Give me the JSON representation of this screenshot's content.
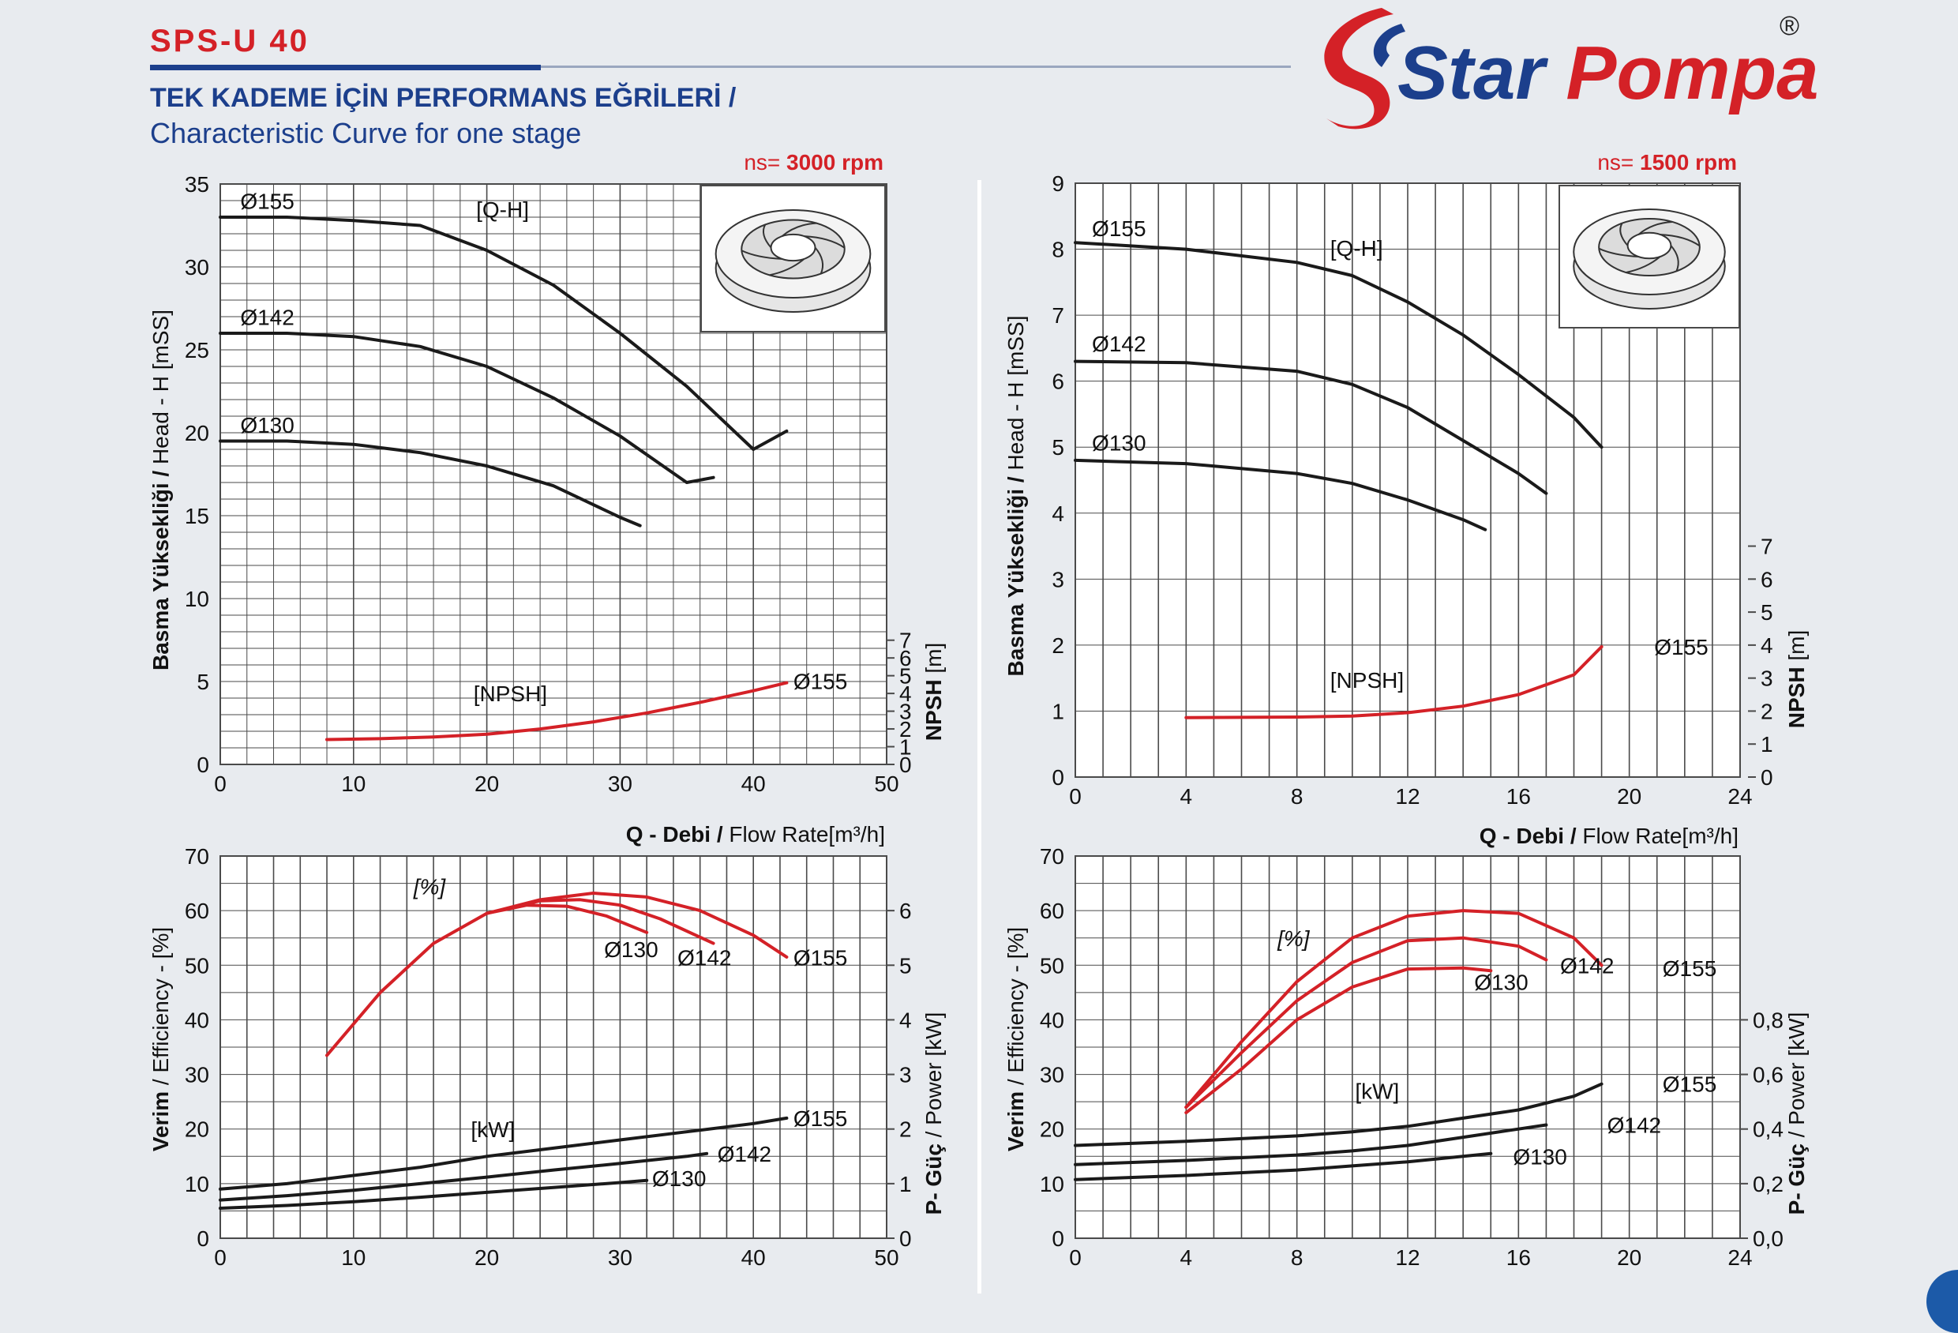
{
  "header": {
    "model": "SPS-U 40",
    "title_tr": "TEK KADEME İÇİN PERFORMANS EĞRİLERİ  /",
    "title_en": "Characteristic Curve for one stage",
    "brand_star": "Star",
    "brand_pompa": "Pompa",
    "brand_reg": "®"
  },
  "colors": {
    "primary": "#1c3f8c",
    "accent": "#d42127",
    "curve": "#1a1a1a",
    "grid": "#4a4a4a"
  },
  "chart_data": [
    {
      "type": "line",
      "speed_prefix": "ns=",
      "speed": "3000 rpm",
      "xlabel_bold": "Q - Debi /",
      "xlabel_normal": " Flow Rate[m³/h]",
      "ylabel_bold": "Basma Yüksekliği /",
      "ylabel_normal": " Head - H [mSS]",
      "y2label_bold": "NPSH",
      "y2label_normal": " [m]",
      "xlim": [
        0,
        50
      ],
      "x_ticks": [
        "0",
        "10",
        "20",
        "30",
        "40",
        "50"
      ],
      "ylim": [
        0,
        35
      ],
      "y_ticks": [
        "0",
        "5",
        "10",
        "15",
        "20",
        "25",
        "30",
        "35"
      ],
      "y2lim": [
        0,
        7
      ],
      "y2_ticks": [
        "0",
        "1",
        "2",
        "3",
        "4",
        "5",
        "6",
        "7"
      ],
      "qh_label": "[Q-H]",
      "npsh_label": "[NPSH]",
      "series": [
        {
          "name": "Ø155",
          "x": [
            0,
            5,
            10,
            15,
            20,
            25,
            30,
            35,
            40,
            42.5
          ],
          "y": [
            33.0,
            33.0,
            32.8,
            32.5,
            31.0,
            28.9,
            26.0,
            22.8,
            19.0,
            17.5
          ],
          "end": [
            42.5,
            20.1
          ]
        },
        {
          "name": "Ø142",
          "x": [
            0,
            5,
            10,
            15,
            20,
            25,
            30,
            35,
            37
          ],
          "y": [
            26.0,
            26.0,
            25.8,
            25.2,
            24.0,
            22.1,
            19.8,
            17.0,
            15.8
          ],
          "end": [
            37,
            17.3
          ]
        },
        {
          "name": "Ø130",
          "x": [
            0,
            5,
            10,
            15,
            20,
            25,
            30,
            31.5
          ],
          "y": [
            19.5,
            19.5,
            19.3,
            18.8,
            18.0,
            16.8,
            14.9,
            14.2
          ],
          "end": [
            31.5,
            14.4
          ]
        }
      ],
      "npsh": {
        "name": "Ø155",
        "x": [
          8,
          12,
          16,
          20,
          24,
          28,
          32,
          36,
          40,
          42.5
        ],
        "y": [
          1.4,
          1.45,
          1.55,
          1.7,
          2.0,
          2.4,
          2.9,
          3.5,
          4.15,
          4.6
        ]
      }
    },
    {
      "type": "line",
      "speed_prefix": "ns=",
      "speed": "1500 rpm",
      "xlabel_bold": "Q - Debi /",
      "xlabel_normal": " Flow Rate[m³/h]",
      "ylabel_bold": "Basma Yüksekliği /",
      "ylabel_normal": " Head - H [mSS]",
      "y2label_bold": "NPSH",
      "y2label_normal": " [m]",
      "xlim": [
        0,
        24
      ],
      "x_ticks": [
        "0",
        "4",
        "8",
        "12",
        "16",
        "20",
        "24"
      ],
      "ylim": [
        0,
        9
      ],
      "y_ticks": [
        "0",
        "1",
        "2",
        "3",
        "4",
        "5",
        "6",
        "7",
        "8",
        "9"
      ],
      "y2lim": [
        0,
        7
      ],
      "y2_ticks": [
        "0",
        "1",
        "2",
        "3",
        "4",
        "5",
        "6",
        "7"
      ],
      "qh_label": "[Q-H]",
      "npsh_label": "[NPSH]",
      "series": [
        {
          "name": "Ø155",
          "x": [
            0,
            4,
            8,
            10,
            12,
            14,
            16,
            18,
            19
          ],
          "y": [
            8.1,
            8.0,
            7.8,
            7.6,
            7.2,
            6.7,
            6.1,
            5.45,
            5.0
          ]
        },
        {
          "name": "Ø142",
          "x": [
            0,
            4,
            8,
            10,
            12,
            14,
            16,
            17
          ],
          "y": [
            6.3,
            6.28,
            6.15,
            5.95,
            5.6,
            5.1,
            4.6,
            4.3
          ]
        },
        {
          "name": "Ø130",
          "x": [
            0,
            4,
            8,
            10,
            12,
            14,
            14.8
          ],
          "y": [
            4.8,
            4.75,
            4.6,
            4.45,
            4.2,
            3.9,
            3.75
          ]
        }
      ],
      "npsh": {
        "name": "Ø155",
        "x": [
          4,
          8,
          10,
          12,
          14,
          16,
          18,
          19
        ],
        "y": [
          1.8,
          1.82,
          1.85,
          1.95,
          2.15,
          2.5,
          3.1,
          3.95
        ]
      }
    },
    {
      "type": "line",
      "xlim": [
        0,
        50
      ],
      "x_ticks": [
        "0",
        "10",
        "20",
        "30",
        "40",
        "50"
      ],
      "ylim": [
        0,
        70
      ],
      "y_ticks": [
        "0",
        "10",
        "20",
        "30",
        "40",
        "50",
        "60",
        "70"
      ],
      "y2lim": [
        0,
        7
      ],
      "y2_ticks": [
        "0",
        "1",
        "2",
        "3",
        "4",
        "5",
        "6"
      ],
      "ylabel_bold": "Verim",
      "ylabel_normal": " / Efficiency -  [%]",
      "y2label_bold": "P- Güç",
      "y2label_normal": " / Power  [kW]",
      "eff_label": "[%]",
      "kw_label": "[kW]",
      "efficiency": [
        {
          "name": "Ø155",
          "x": [
            8,
            12,
            16,
            20,
            24,
            28,
            32,
            36,
            40,
            42.5
          ],
          "y": [
            33.5,
            45,
            54,
            59.5,
            62.0,
            63.2,
            62.5,
            60,
            55.5,
            51.5
          ]
        },
        {
          "name": "Ø142",
          "x": [
            20,
            24,
            27,
            30,
            33,
            37
          ],
          "y": [
            59.5,
            61.8,
            62.0,
            61.0,
            58.5,
            54
          ]
        },
        {
          "name": "Ø130",
          "x": [
            20,
            23,
            26,
            29,
            32
          ],
          "y": [
            59.5,
            61.0,
            60.8,
            59.0,
            56
          ]
        }
      ],
      "power": [
        {
          "name": "Ø155",
          "x": [
            0,
            5,
            10,
            15,
            20,
            25,
            30,
            35,
            40,
            42.5
          ],
          "y": [
            0.9,
            1.0,
            1.15,
            1.3,
            1.5,
            1.65,
            1.8,
            1.95,
            2.1,
            2.2
          ]
        },
        {
          "name": "Ø142",
          "x": [
            0,
            5,
            10,
            15,
            20,
            25,
            30,
            35,
            36.5
          ],
          "y": [
            0.7,
            0.78,
            0.88,
            1.0,
            1.12,
            1.25,
            1.37,
            1.5,
            1.55
          ]
        },
        {
          "name": "Ø130",
          "x": [
            0,
            5,
            10,
            15,
            20,
            25,
            30,
            32
          ],
          "y": [
            0.55,
            0.6,
            0.67,
            0.75,
            0.84,
            0.93,
            1.02,
            1.06
          ]
        }
      ]
    },
    {
      "type": "line",
      "xlim": [
        0,
        24
      ],
      "x_ticks": [
        "0",
        "4",
        "8",
        "12",
        "16",
        "20",
        "24"
      ],
      "ylim": [
        0,
        70
      ],
      "y_ticks": [
        "0",
        "10",
        "20",
        "30",
        "40",
        "50",
        "60",
        "70"
      ],
      "y2lim": [
        0,
        1.4
      ],
      "y2_ticks": [
        "0,0",
        "0,2",
        "0,4",
        "0,6",
        "0,8"
      ],
      "ylabel_bold": "Verim",
      "ylabel_normal": " / Efficiency -  [%]",
      "y2label_bold": "P- Güç",
      "y2label_normal": " / Power  [kW]",
      "eff_label": "[%]",
      "kw_label": "[kW]",
      "efficiency": [
        {
          "name": "Ø155",
          "x": [
            4,
            6,
            8,
            10,
            12,
            14,
            16,
            18,
            19
          ],
          "y": [
            24,
            36,
            47,
            55,
            59,
            60.0,
            59.5,
            55,
            50
          ]
        },
        {
          "name": "Ø142",
          "x": [
            4,
            6,
            8,
            10,
            12,
            14,
            16,
            17
          ],
          "y": [
            24,
            34,
            43.5,
            50.5,
            54.5,
            55.0,
            53.5,
            51
          ]
        },
        {
          "name": "Ø130",
          "x": [
            4,
            6,
            8,
            10,
            12,
            14,
            15
          ],
          "y": [
            23,
            31,
            40,
            46,
            49.3,
            49.5,
            49
          ]
        }
      ],
      "power": [
        {
          "name": "Ø155",
          "x": [
            0,
            4,
            8,
            10,
            12,
            14,
            16,
            18,
            19
          ],
          "y": [
            0.34,
            0.355,
            0.375,
            0.39,
            0.41,
            0.44,
            0.47,
            0.52,
            0.565
          ]
        },
        {
          "name": "Ø142",
          "x": [
            0,
            4,
            8,
            10,
            12,
            14,
            16,
            17
          ],
          "y": [
            0.27,
            0.285,
            0.305,
            0.32,
            0.34,
            0.37,
            0.4,
            0.415
          ]
        },
        {
          "name": "Ø130",
          "x": [
            0,
            4,
            8,
            10,
            12,
            14,
            15
          ],
          "y": [
            0.215,
            0.23,
            0.25,
            0.265,
            0.28,
            0.3,
            0.31
          ]
        }
      ]
    }
  ]
}
